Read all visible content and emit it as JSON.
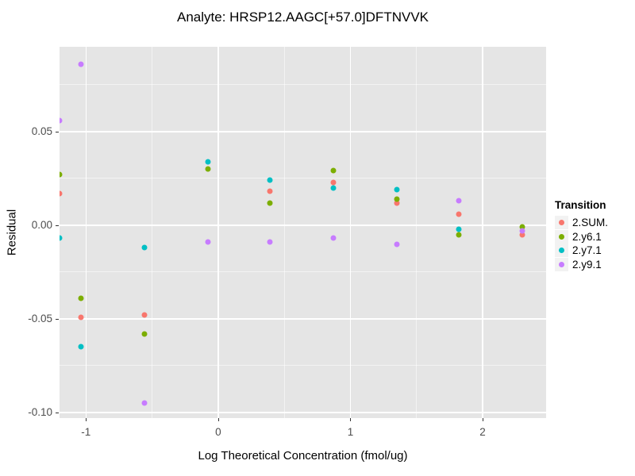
{
  "title": "Analyte: HRSP12.AAGC[+57.0]DFTNVVK",
  "colors": {
    "panel_background": "#E5E5E5",
    "grid": "#FFFFFF",
    "tick_text": "#4d4d4d",
    "series_sum": "#F8766D",
    "series_y6": "#7CAE00",
    "series_y7": "#00BFC4",
    "series_y9": "#C77CFF"
  },
  "chart_data": {
    "type": "scatter",
    "title": "Analyte: HRSP12.AAGC[+57.0]DFTNVVK",
    "xlabel": "Log Theoretical Concentration (fmol/ug)",
    "ylabel": "Residual",
    "xlim": [
      -1.2,
      2.48
    ],
    "ylim": [
      -0.103,
      0.0953
    ],
    "grid": true,
    "x_ticks": {
      "values": [
        -1,
        0,
        1,
        2
      ],
      "labels": [
        "-1",
        "0",
        "1",
        "2"
      ],
      "minor": [
        -0.5,
        0.5,
        1.5,
        2.5
      ]
    },
    "y_ticks": {
      "values": [
        0.05,
        0.0,
        -0.05,
        -0.1
      ],
      "labels": [
        "0.05",
        "0.00",
        "-0.05",
        "-0.10"
      ],
      "minor": [
        0.075,
        0.025,
        -0.025,
        -0.075
      ]
    },
    "legend": {
      "title": "Transition",
      "position": "right"
    },
    "series": [
      {
        "name": "2.SUM.",
        "color": "#F8766D",
        "points": [
          [
            -1.2,
            0.017
          ],
          [
            -1.04,
            -0.049
          ],
          [
            -0.56,
            -0.048
          ],
          [
            0.39,
            0.018
          ],
          [
            0.87,
            0.023
          ],
          [
            1.35,
            0.012
          ],
          [
            1.82,
            0.006
          ],
          [
            2.3,
            -0.005
          ]
        ]
      },
      {
        "name": "2.y6.1",
        "color": "#7CAE00",
        "points": [
          [
            -1.2,
            0.027
          ],
          [
            -1.04,
            -0.039
          ],
          [
            -0.56,
            -0.058
          ],
          [
            -0.08,
            0.03
          ],
          [
            0.39,
            0.012
          ],
          [
            0.87,
            0.029
          ],
          [
            1.35,
            0.014
          ],
          [
            1.82,
            -0.005
          ],
          [
            2.3,
            -0.001
          ]
        ]
      },
      {
        "name": "2.y7.1",
        "color": "#00BFC4",
        "points": [
          [
            -1.2,
            -0.007
          ],
          [
            -1.04,
            -0.065
          ],
          [
            -0.56,
            -0.012
          ],
          [
            -0.08,
            0.034
          ],
          [
            0.39,
            0.024
          ],
          [
            0.87,
            0.02
          ],
          [
            1.35,
            0.019
          ],
          [
            1.82,
            -0.002
          ]
        ]
      },
      {
        "name": "2.y9.1",
        "color": "#C77CFF",
        "points": [
          [
            -1.2,
            0.056
          ],
          [
            -1.04,
            0.086
          ],
          [
            -0.56,
            -0.095
          ],
          [
            -0.08,
            -0.009
          ],
          [
            0.39,
            -0.009
          ],
          [
            0.87,
            -0.007
          ],
          [
            1.35,
            -0.01
          ],
          [
            1.82,
            0.013
          ],
          [
            2.3,
            -0.003
          ]
        ]
      }
    ]
  }
}
